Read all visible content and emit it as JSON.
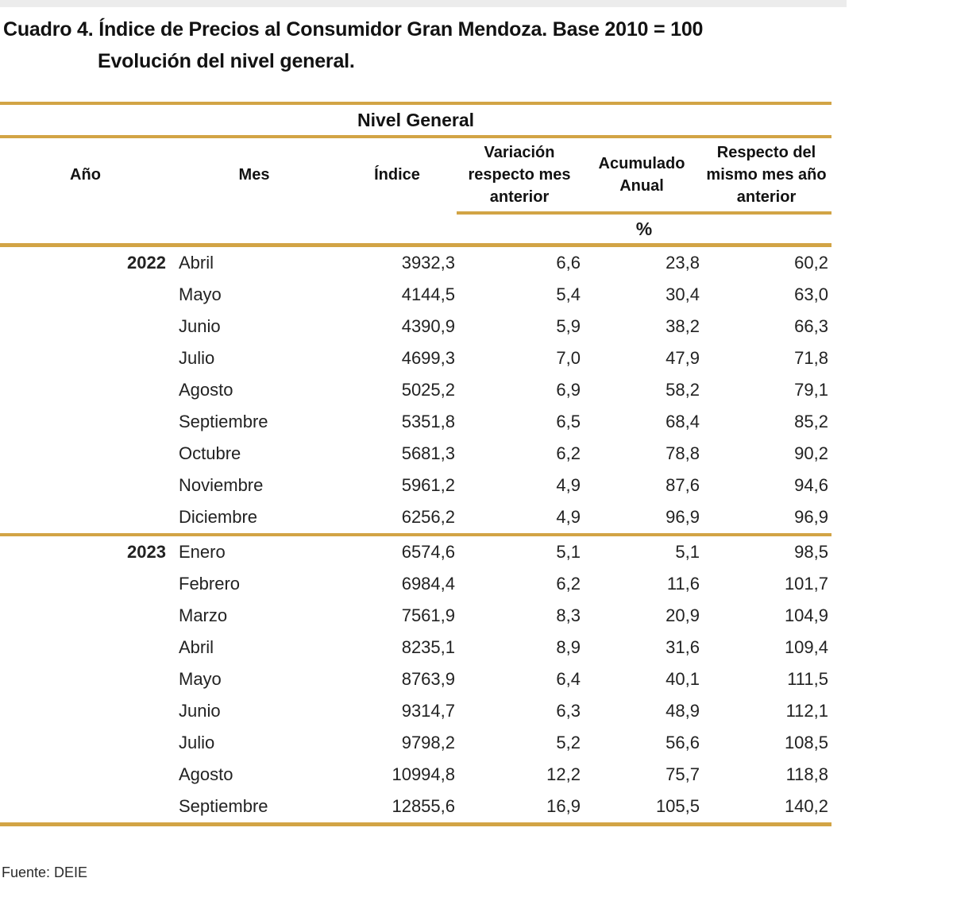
{
  "title": {
    "line1": "Cuadro 4. Índice de Precios al Consumidor Gran Mendoza. Base 2010 = 100",
    "line2": "Evolución del nivel general."
  },
  "table": {
    "band_title": "Nivel General",
    "columns": [
      "Año",
      "Mes",
      "Índice",
      "Variación respecto mes anterior",
      "Acumulado Anual",
      "Respecto del mismo mes año anterior"
    ],
    "unit_label": "%",
    "groups": [
      {
        "year": "2022",
        "rows": [
          {
            "month": "Abril",
            "indice": "3932,3",
            "variacion": "6,6",
            "acumulado": "23,8",
            "respecto": "60,2"
          },
          {
            "month": "Mayo",
            "indice": "4144,5",
            "variacion": "5,4",
            "acumulado": "30,4",
            "respecto": "63,0"
          },
          {
            "month": "Junio",
            "indice": "4390,9",
            "variacion": "5,9",
            "acumulado": "38,2",
            "respecto": "66,3"
          },
          {
            "month": "Julio",
            "indice": "4699,3",
            "variacion": "7,0",
            "acumulado": "47,9",
            "respecto": "71,8"
          },
          {
            "month": "Agosto",
            "indice": "5025,2",
            "variacion": "6,9",
            "acumulado": "58,2",
            "respecto": "79,1"
          },
          {
            "month": "Septiembre",
            "indice": "5351,8",
            "variacion": "6,5",
            "acumulado": "68,4",
            "respecto": "85,2"
          },
          {
            "month": "Octubre",
            "indice": "5681,3",
            "variacion": "6,2",
            "acumulado": "78,8",
            "respecto": "90,2"
          },
          {
            "month": "Noviembre",
            "indice": "5961,2",
            "variacion": "4,9",
            "acumulado": "87,6",
            "respecto": "94,6"
          },
          {
            "month": "Diciembre",
            "indice": "6256,2",
            "variacion": "4,9",
            "acumulado": "96,9",
            "respecto": "96,9"
          }
        ]
      },
      {
        "year": "2023",
        "rows": [
          {
            "month": "Enero",
            "indice": "6574,6",
            "variacion": "5,1",
            "acumulado": "5,1",
            "respecto": "98,5"
          },
          {
            "month": "Febrero",
            "indice": "6984,4",
            "variacion": "6,2",
            "acumulado": "11,6",
            "respecto": "101,7"
          },
          {
            "month": "Marzo",
            "indice": "7561,9",
            "variacion": "8,3",
            "acumulado": "20,9",
            "respecto": "104,9"
          },
          {
            "month": "Abril",
            "indice": "8235,1",
            "variacion": "8,9",
            "acumulado": "31,6",
            "respecto": "109,4"
          },
          {
            "month": "Mayo",
            "indice": "8763,9",
            "variacion": "6,4",
            "acumulado": "40,1",
            "respecto": "111,5"
          },
          {
            "month": "Junio",
            "indice": "9314,7",
            "variacion": "6,3",
            "acumulado": "48,9",
            "respecto": "112,1"
          },
          {
            "month": "Julio",
            "indice": "9798,2",
            "variacion": "5,2",
            "acumulado": "56,6",
            "respecto": "108,5"
          },
          {
            "month": "Agosto",
            "indice": "10994,8",
            "variacion": "12,2",
            "acumulado": "75,7",
            "respecto": "118,8"
          },
          {
            "month": "Septiembre",
            "indice": "12855,6",
            "variacion": "16,9",
            "acumulado": "105,5",
            "respecto": "140,2"
          }
        ]
      }
    ]
  },
  "source": "Fuente: DEIE",
  "colors": {
    "rule_gold": "#d2a445",
    "text": "#1c1c1c",
    "background": "#ffffff"
  }
}
